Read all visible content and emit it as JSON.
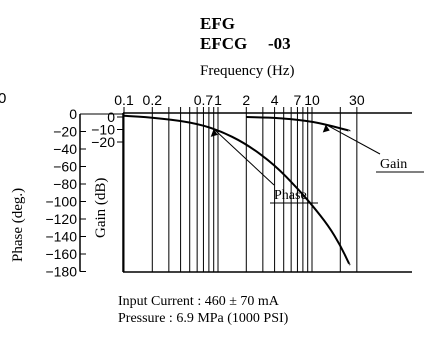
{
  "chart_data": {
    "type": "line",
    "title_line1": "EFG",
    "title_line2": "EFCG",
    "title_suffix": "-03",
    "x_axis_label": "Frequency (Hz)",
    "x_scale": "log",
    "x_ticks": [
      {
        "label": "0.1",
        "value": 0.1
      },
      {
        "label": "0.2",
        "value": 0.2
      },
      {
        "label": "0.7",
        "value": 0.7
      },
      {
        "label": "1",
        "value": 1
      },
      {
        "label": "2",
        "value": 2
      },
      {
        "label": "4",
        "value": 4
      },
      {
        "label": "7",
        "value": 7
      },
      {
        "label": "10",
        "value": 10
      },
      {
        "label": "30",
        "value": 30
      }
    ],
    "left_axis": {
      "label": "Phase (deg.)",
      "range": [
        -180,
        0
      ],
      "ticks": [
        "0",
        "−20",
        "−40",
        "−60",
        "−80",
        "−100",
        "−120",
        "−140",
        "−160",
        "−180"
      ],
      "tick_values": [
        0,
        -20,
        -40,
        -60,
        -80,
        -100,
        -120,
        -140,
        -160,
        -180
      ]
    },
    "right_axis": {
      "label": "Gain (dB)",
      "ticks": [
        "0",
        "−10",
        "−20"
      ],
      "tick_values": [
        0,
        -10,
        -20
      ]
    },
    "series": [
      {
        "name": "Phase",
        "axis": "left",
        "x": [
          0.1,
          0.2,
          0.5,
          1,
          2,
          4,
          7,
          10,
          15,
          20,
          25
        ],
        "y": [
          -2,
          -4,
          -9,
          -18,
          -34,
          -58,
          -85,
          -104,
          -128,
          -150,
          -172
        ]
      },
      {
        "name": "Gain",
        "axis": "right",
        "x": [
          2,
          3,
          4,
          5,
          7,
          10,
          14,
          20,
          25
        ],
        "y": [
          0,
          -0.3,
          -0.7,
          -1.2,
          -2.2,
          -3.8,
          -6,
          -9,
          -11
        ]
      }
    ],
    "left_edge_label": "0",
    "grid": true,
    "annotations": {
      "line1": "Input Current : 460 ± 70 mA",
      "line2": "Pressure : 6.9 MPa (1000 PSI)"
    }
  }
}
